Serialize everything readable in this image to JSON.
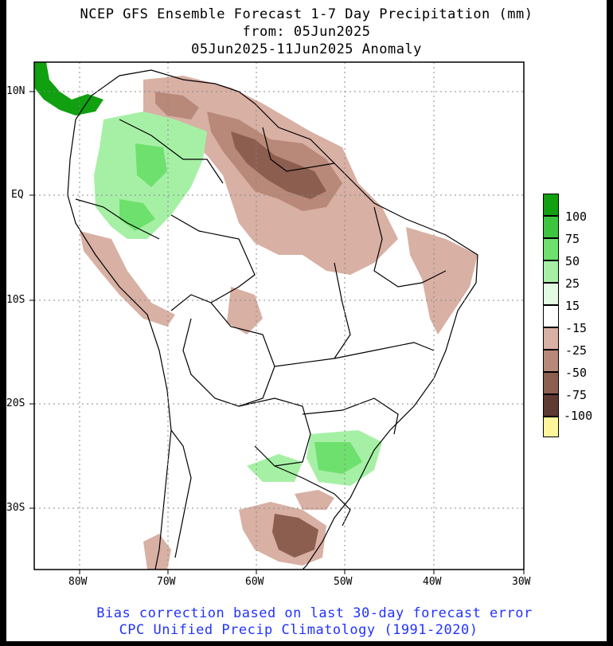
{
  "title": {
    "line1": "NCEP GFS Ensemble Forecast 1-7 Day Precipitation (mm)",
    "line2": "from: 05Jun2025",
    "line3": "05Jun2025-11Jun2025 Anomaly"
  },
  "axes": {
    "lat_labels": [
      "10N",
      "EQ",
      "10S",
      "20S",
      "30S"
    ],
    "lon_labels": [
      "80W",
      "70W",
      "60W",
      "50W",
      "40W",
      "30W"
    ]
  },
  "legend": {
    "labels": [
      "100",
      "75",
      "50",
      "25",
      "15",
      "-15",
      "-25",
      "-50",
      "-75",
      "-100"
    ],
    "colors": [
      "#10a010",
      "#3ec43e",
      "#6ee06e",
      "#a6f0a6",
      "#e2fbe2",
      "#ffffff",
      "#d8b0a4",
      "#b88878",
      "#8c5e50",
      "#5e3a30",
      "#fff59a"
    ]
  },
  "footer": {
    "line1": "Bias correction based on last 30-day forecast error",
    "line2": "CPC Unified Precip Climatology (1991-2020)"
  }
}
